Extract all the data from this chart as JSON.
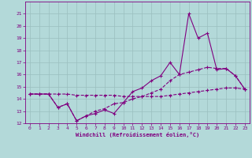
{
  "x": [
    0,
    1,
    2,
    3,
    4,
    5,
    6,
    7,
    8,
    9,
    10,
    11,
    12,
    13,
    14,
    15,
    16,
    17,
    18,
    19,
    20,
    21,
    22,
    23
  ],
  "series1": [
    14.4,
    14.4,
    14.4,
    13.3,
    13.6,
    12.2,
    12.6,
    12.8,
    13.1,
    12.8,
    13.7,
    14.6,
    14.9,
    15.5,
    15.9,
    17.0,
    16.0,
    21.0,
    19.0,
    19.4,
    16.4,
    16.5,
    15.9,
    14.8
  ],
  "series2": [
    14.4,
    14.4,
    14.4,
    13.3,
    13.6,
    12.2,
    12.6,
    13.0,
    13.2,
    13.6,
    13.7,
    14.0,
    14.2,
    14.5,
    14.8,
    15.5,
    16.0,
    16.2,
    16.4,
    16.6,
    16.5,
    16.5,
    15.9,
    14.8
  ],
  "series3": [
    14.4,
    14.4,
    14.4,
    14.4,
    14.4,
    14.3,
    14.3,
    14.3,
    14.3,
    14.3,
    14.2,
    14.2,
    14.2,
    14.2,
    14.2,
    14.3,
    14.4,
    14.5,
    14.6,
    14.7,
    14.8,
    14.9,
    14.9,
    14.8
  ],
  "line_color": "#800080",
  "bg_color": "#b3d9d9",
  "grid_color": "#9abfbf",
  "xlabel": "Windchill (Refroidissement éolien,°C)",
  "ylim": [
    12,
    22
  ],
  "xlim": [
    -0.5,
    23.5
  ],
  "yticks": [
    12,
    13,
    14,
    15,
    16,
    17,
    18,
    19,
    20,
    21
  ],
  "xticks": [
    0,
    1,
    2,
    3,
    4,
    5,
    6,
    7,
    8,
    9,
    10,
    11,
    12,
    13,
    14,
    15,
    16,
    17,
    18,
    19,
    20,
    21,
    22,
    23
  ]
}
